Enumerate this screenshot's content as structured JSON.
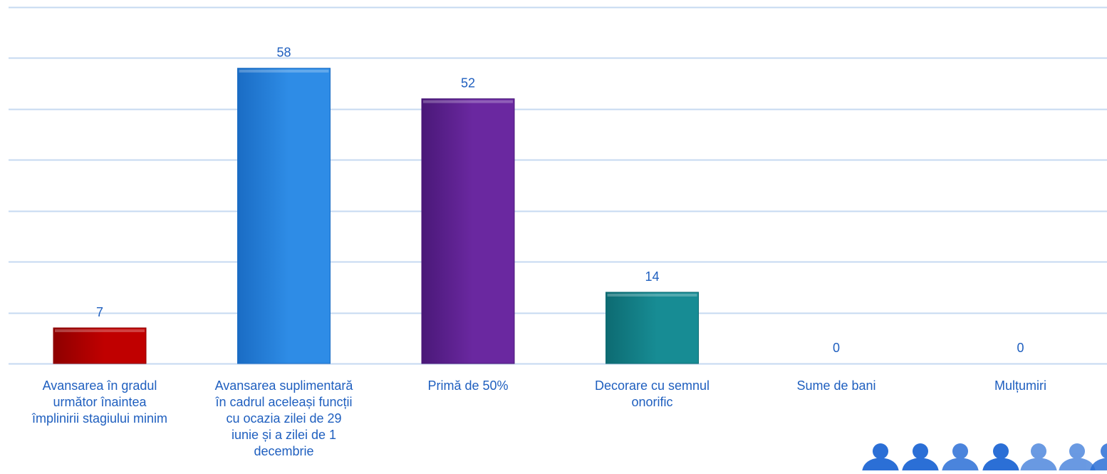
{
  "chart_data": {
    "type": "bar",
    "title": "",
    "xlabel": "",
    "ylabel": "",
    "ylim": [
      0,
      70
    ],
    "grid": true,
    "categories": [
      "Avansarea în gradul următor înaintea împlinirii stagiului minim",
      "Avansarea suplimentară în cadrul aceleași funcții cu ocazia zilei de 29 iunie și a zilei de 1 decembrie",
      "Primă de 50%",
      "Decorare cu semnul onorific",
      "Sume de bani",
      "Mulțumiri"
    ],
    "category_lines": [
      [
        "Avansarea în gradul",
        "următor înaintea",
        "împlinirii stagiului minim"
      ],
      [
        "Avansarea suplimentară",
        "în cadrul aceleași funcții",
        "cu ocazia zilei de 29",
        "iunie și a zilei de 1",
        "decembrie"
      ],
      [
        "Primă de 50%"
      ],
      [
        "Decorare cu semnul",
        "onorific"
      ],
      [
        "Sume de bani"
      ],
      [
        "Mulțumiri"
      ]
    ],
    "values": [
      7,
      58,
      52,
      14,
      0,
      0
    ],
    "bar_colors": [
      "#c00000",
      "#2e8ce6",
      "#6a28a0",
      "#178c94",
      "#4472c4",
      "#4472c4"
    ],
    "bar_colors_dark": [
      "#8e0000",
      "#1a6cc4",
      "#4a1878",
      "#0d6b72",
      "#2f5597",
      "#2f5597"
    ],
    "gridline_color": "#c6d9f1",
    "label_color": "#1f5fbf",
    "decoration_color": "#2b6fd6"
  }
}
